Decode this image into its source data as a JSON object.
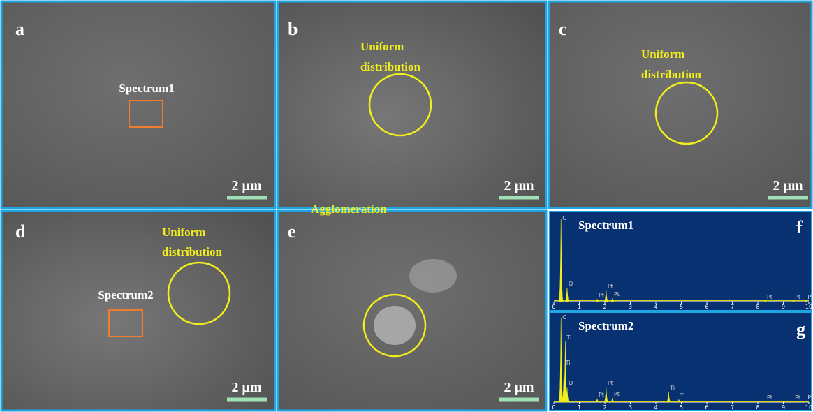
{
  "panels": [
    {
      "label": "a",
      "scale_bar": "2 μm",
      "annotation": "Spectrum1"
    },
    {
      "label": "b",
      "scale_bar": "2 μm",
      "annotation_lines": [
        "Uniform",
        "distribution"
      ]
    },
    {
      "label": "c",
      "scale_bar": "2 μm",
      "annotation_lines": [
        "Uniform",
        "distribution"
      ]
    },
    {
      "label": "d",
      "scale_bar": "2 μm",
      "annotation": "Spectrum2",
      "annotation_lines": [
        "Uniform",
        "distribution"
      ]
    },
    {
      "label": "e",
      "scale_bar": "2 μm",
      "annotation": "Agglomeration"
    }
  ],
  "spectra": [
    {
      "label": "f",
      "name": "Spectrum1",
      "axis_ticks": [
        0,
        1,
        2,
        3,
        4,
        5,
        6,
        7,
        8,
        9,
        10
      ],
      "peaks": [
        {
          "label": "C",
          "energy": 0.28,
          "height": 100
        },
        {
          "label": "O",
          "energy": 0.52,
          "height": 17
        },
        {
          "label": "Pt",
          "energy": 1.7,
          "height": 3
        },
        {
          "label": "Pt",
          "energy": 2.05,
          "height": 14
        },
        {
          "label": "Pt",
          "energy": 2.3,
          "height": 4
        },
        {
          "label": "Pt",
          "energy": 8.3,
          "height": 1
        },
        {
          "label": "Pt",
          "energy": 9.4,
          "height": 1
        },
        {
          "label": "Pt",
          "energy": 9.9,
          "height": 1
        }
      ]
    },
    {
      "label": "g",
      "name": "Spectrum2",
      "axis_ticks": [
        0,
        1,
        2,
        3,
        4,
        5,
        6,
        7,
        8,
        9,
        10
      ],
      "peaks": [
        {
          "label": "C",
          "energy": 0.28,
          "height": 100
        },
        {
          "label": "Ti",
          "energy": 0.45,
          "height": 72
        },
        {
          "label": "O",
          "energy": 0.52,
          "height": 18
        },
        {
          "label": "Ti",
          "energy": 0.4,
          "height": 42
        },
        {
          "label": "Pt",
          "energy": 1.7,
          "height": 4
        },
        {
          "label": "Pt",
          "energy": 2.05,
          "height": 18
        },
        {
          "label": "Pt",
          "energy": 2.3,
          "height": 5
        },
        {
          "label": "Ti",
          "energy": 4.5,
          "height": 12
        },
        {
          "label": "Ti",
          "energy": 4.9,
          "height": 3
        },
        {
          "label": "Pt",
          "energy": 8.3,
          "height": 1
        },
        {
          "label": "Pt",
          "energy": 9.4,
          "height": 1
        },
        {
          "label": "Pt",
          "energy": 9.9,
          "height": 1
        }
      ]
    }
  ]
}
